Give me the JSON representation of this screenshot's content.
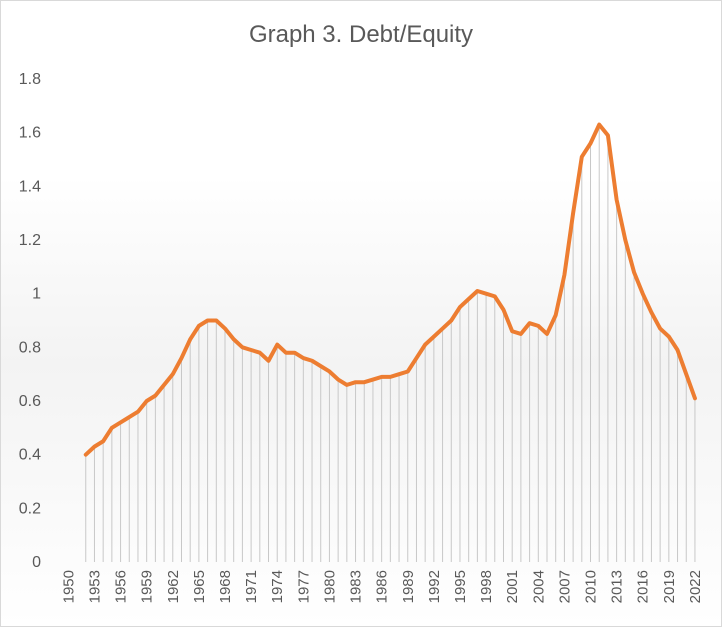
{
  "chart_data": {
    "type": "area",
    "title": "Graph  3. Debt/Equity",
    "xlabel": "",
    "ylabel": "",
    "ylim": [
      0,
      1.8
    ],
    "y_ticks": [
      "0",
      "0.2",
      "0.4",
      "0.6",
      "0.8",
      "1",
      "1.2",
      "1.4",
      "1.6",
      "1.8"
    ],
    "x_tick_labels": [
      "1950",
      "1953",
      "1956",
      "1959",
      "1962",
      "1965",
      "1968",
      "1971",
      "1974",
      "1977",
      "1980",
      "1983",
      "1986",
      "1989",
      "1992",
      "1995",
      "1998",
      "2001",
      "2004",
      "2007",
      "2010",
      "2013",
      "2016",
      "2019",
      "2022"
    ],
    "grid": false,
    "legend": "none",
    "line_color": "#ED7D31",
    "drop_line_color": "#c8c8c8",
    "series": [
      {
        "x": [
          1952,
          1953,
          1954,
          1955,
          1956,
          1957,
          1958,
          1959,
          1960,
          1961,
          1962,
          1963,
          1964,
          1965,
          1966,
          1967,
          1968,
          1969,
          1970,
          1971,
          1972,
          1973,
          1974,
          1975,
          1976,
          1977,
          1978,
          1979,
          1980,
          1981,
          1982,
          1983,
          1984,
          1985,
          1986,
          1987,
          1988,
          1989,
          1990,
          1991,
          1992,
          1993,
          1994,
          1995,
          1996,
          1997,
          1998,
          1999,
          2000,
          2001,
          2002,
          2003,
          2004,
          2005,
          2006,
          2007,
          2008,
          2009,
          2010,
          2011,
          2012,
          2013,
          2014,
          2015,
          2016,
          2017,
          2018,
          2019,
          2020,
          2021,
          2022
        ],
        "values": [
          0.4,
          0.43,
          0.45,
          0.5,
          0.52,
          0.54,
          0.56,
          0.6,
          0.62,
          0.66,
          0.7,
          0.76,
          0.83,
          0.88,
          0.9,
          0.9,
          0.87,
          0.83,
          0.8,
          0.79,
          0.78,
          0.75,
          0.81,
          0.78,
          0.78,
          0.76,
          0.75,
          0.73,
          0.71,
          0.68,
          0.66,
          0.67,
          0.67,
          0.68,
          0.69,
          0.69,
          0.7,
          0.71,
          0.76,
          0.81,
          0.84,
          0.87,
          0.9,
          0.95,
          0.98,
          1.01,
          1.0,
          0.99,
          0.94,
          0.86,
          0.85,
          0.89,
          0.88,
          0.85,
          0.92,
          1.07,
          1.3,
          1.51,
          1.56,
          1.63,
          1.59,
          1.35,
          1.2,
          1.08,
          1.0,
          0.93,
          0.87,
          0.84,
          0.79,
          0.7,
          0.61
        ]
      }
    ]
  }
}
